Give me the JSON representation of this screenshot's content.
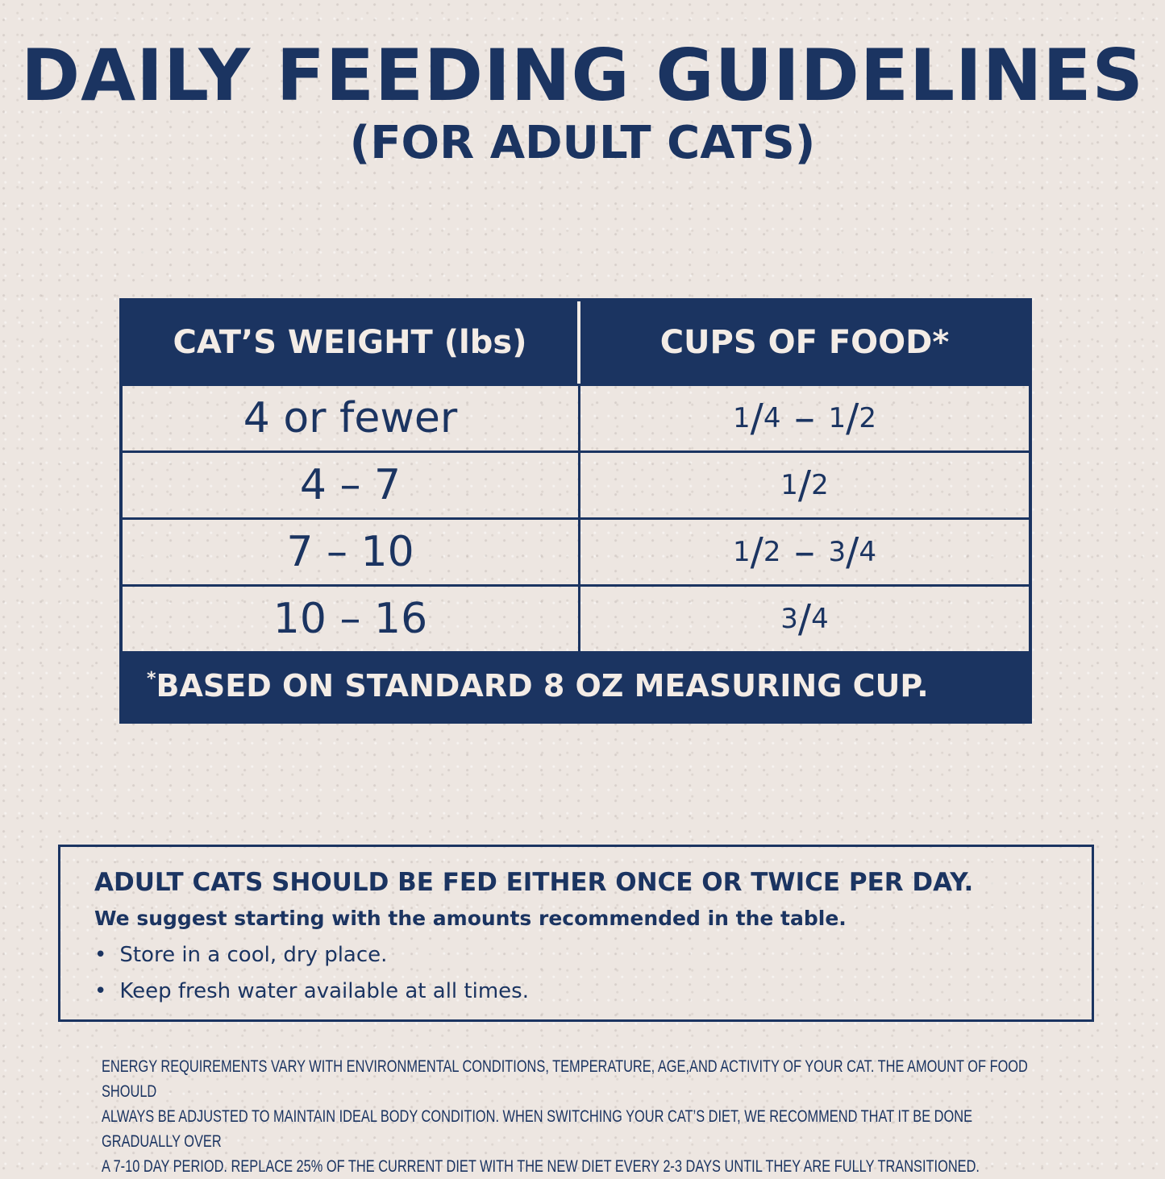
{
  "title": "DAILY FEEDING GUIDELINES",
  "subtitle": "(FOR ADULT CATS)",
  "table": {
    "headers": [
      "CAT’S WEIGHT (lbs)",
      "CUPS OF FOOD*"
    ],
    "rows": [
      {
        "weight": "4 or fewer",
        "cups": "1/4 – 1/2"
      },
      {
        "weight": "4 – 7",
        "cups": "1/2"
      },
      {
        "weight": "7 – 10",
        "cups": "1/2 – 3/4"
      },
      {
        "weight": "10 – 16",
        "cups": "3/4"
      }
    ],
    "footnote_mark": "*",
    "footnote": "BASED ON STANDARD 8 OZ MEASURING CUP."
  },
  "info": {
    "heading": "ADULT CATS SHOULD BE FED EITHER ONCE OR TWICE PER DAY.",
    "suggestion": "We suggest starting with the amounts recommended in the table.",
    "bullets": [
      "Store in a cool, dry place.",
      "Keep fresh water available at all times."
    ]
  },
  "fine_print": [
    "ENERGY REQUIREMENTS VARY WITH ENVIRONMENTAL CONDITIONS, TEMPERATURE, AGE,AND ACTIVITY OF YOUR CAT. THE AMOUNT OF FOOD SHOULD",
    "ALWAYS BE ADJUSTED TO MAINTAIN IDEAL BODY CONDITION. WHEN SWITCHING YOUR CAT’S DIET, WE RECOMMEND THAT IT BE DONE GRADUALLY OVER",
    "A 7-10 DAY PERIOD. REPLACE 25% OF THE CURRENT DIET WITH THE NEW DIET EVERY 2-3 DAYS UNTIL THEY ARE FULLY TRANSITIONED."
  ],
  "colors": {
    "navy": "#1b3461",
    "background": "#ede6e1"
  }
}
